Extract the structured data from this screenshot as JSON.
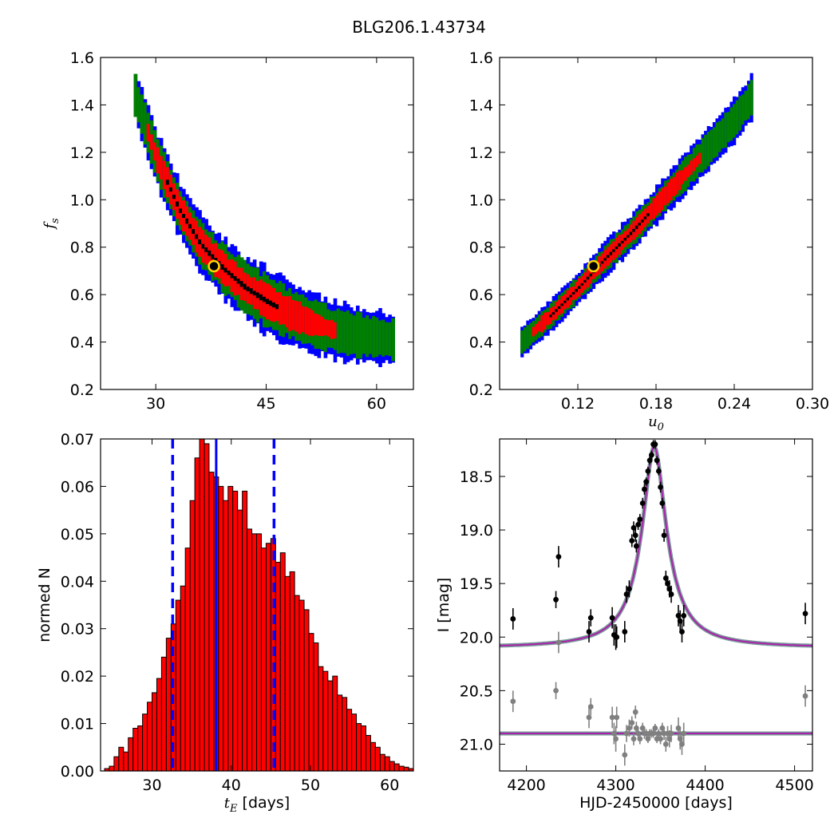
{
  "figure": {
    "title": "BLG206.1.43734"
  },
  "chart_data": [
    {
      "id": "fs-vs-te",
      "type": "heatmap",
      "title": "",
      "xlabel": "",
      "ylabel": "f_s",
      "xlim": [
        22.5,
        65
      ],
      "ylim": [
        0.2,
        1.6
      ],
      "x_ticks": [
        30,
        45,
        60
      ],
      "x_tick_labels": [
        "30",
        "45",
        "60"
      ],
      "y_ticks": [
        0.2,
        0.4,
        0.6,
        0.8,
        1.0,
        1.2,
        1.4,
        1.6
      ],
      "y_tick_labels": [
        "0.2",
        "0.4",
        "0.6",
        "0.8",
        "1.0",
        "1.2",
        "1.4",
        "1.6"
      ],
      "confidence_levels": [
        {
          "level": "outer",
          "color": "#0000ff"
        },
        {
          "level": "middle",
          "color": "#007f00"
        },
        {
          "level": "inner",
          "color": "#ff0000"
        },
        {
          "level": "peak",
          "color": "#000000"
        }
      ],
      "ridge": [
        [
          27,
          1.44
        ],
        [
          30,
          1.17
        ],
        [
          33,
          0.96
        ],
        [
          36,
          0.81
        ],
        [
          39,
          0.71
        ],
        [
          42,
          0.63
        ],
        [
          45,
          0.57
        ],
        [
          48,
          0.52
        ],
        [
          51,
          0.48
        ],
        [
          54,
          0.45
        ],
        [
          57,
          0.43
        ],
        [
          60,
          0.42
        ],
        [
          62,
          0.41
        ]
      ],
      "best_fit": {
        "x": 37.9,
        "y": 0.72,
        "color": "#ffd700"
      }
    },
    {
      "id": "fs-vs-u0",
      "type": "heatmap",
      "title": "",
      "xlabel": "u_0",
      "ylabel": "",
      "xlim": [
        0.06,
        0.3
      ],
      "ylim": [
        0.2,
        1.6
      ],
      "x_ticks": [
        0.12,
        0.18,
        0.24,
        0.3
      ],
      "x_tick_labels": [
        "0.12",
        "0.18",
        "0.24",
        "0.30"
      ],
      "y_ticks": [
        0.2,
        0.4,
        0.6,
        0.8,
        1.0,
        1.2,
        1.4,
        1.6
      ],
      "y_tick_labels": [
        "0.2",
        "0.4",
        "0.6",
        "0.8",
        "1.0",
        "1.2",
        "1.4",
        "1.6"
      ],
      "ridge": [
        [
          0.076,
          0.4
        ],
        [
          0.1,
          0.52
        ],
        [
          0.12,
          0.63
        ],
        [
          0.14,
          0.75
        ],
        [
          0.16,
          0.86
        ],
        [
          0.18,
          0.98
        ],
        [
          0.2,
          1.1
        ],
        [
          0.22,
          1.22
        ],
        [
          0.24,
          1.34
        ],
        [
          0.252,
          1.43
        ]
      ],
      "best_fit": {
        "x": 0.132,
        "y": 0.72,
        "color": "#ffd700"
      }
    },
    {
      "id": "te-histogram",
      "type": "bar",
      "title": "",
      "xlabel": "t_E  [days]",
      "ylabel": "normed N",
      "xlim": [
        23.5,
        63
      ],
      "ylim": [
        0,
        0.07
      ],
      "x_ticks": [
        30,
        40,
        50,
        60
      ],
      "x_tick_labels": [
        "30",
        "40",
        "50",
        "60"
      ],
      "y_ticks": [
        0,
        0.01,
        0.02,
        0.03,
        0.04,
        0.05,
        0.06,
        0.07
      ],
      "y_tick_labels": [
        "0.00",
        "0.01",
        "0.02",
        "0.03",
        "0.04",
        "0.05",
        "0.06",
        "0.07"
      ],
      "bin_width": 0.6,
      "bin_start": 24,
      "values": [
        0.0005,
        0.001,
        0.003,
        0.005,
        0.004,
        0.007,
        0.009,
        0.0095,
        0.012,
        0.0145,
        0.0165,
        0.0195,
        0.024,
        0.028,
        0.031,
        0.036,
        0.039,
        0.047,
        0.057,
        0.066,
        0.07,
        0.069,
        0.063,
        0.062,
        0.06,
        0.057,
        0.06,
        0.059,
        0.055,
        0.059,
        0.051,
        0.05,
        0.05,
        0.047,
        0.048,
        0.049,
        0.044,
        0.046,
        0.041,
        0.042,
        0.037,
        0.036,
        0.034,
        0.029,
        0.027,
        0.022,
        0.021,
        0.019,
        0.02,
        0.016,
        0.0155,
        0.013,
        0.012,
        0.01,
        0.0095,
        0.0075,
        0.006,
        0.005,
        0.0035,
        0.003,
        0.002,
        0.0015,
        0.001,
        0.0008,
        0.0005,
        0.0003
      ],
      "bar_color": "#ff0000",
      "median_line": {
        "x": 38.1,
        "color": "#0000ff",
        "style": "solid"
      },
      "interval_lines": [
        {
          "x": 32.6,
          "color": "#0000ff",
          "style": "dashed"
        },
        {
          "x": 45.4,
          "color": "#0000ff",
          "style": "dashed"
        }
      ]
    },
    {
      "id": "light-curve",
      "type": "scatter",
      "title": "",
      "xlabel": "HJD-2450000 [days]",
      "ylabel": "I [mag]",
      "xlim": [
        4170,
        4520
      ],
      "ylim": [
        21.25,
        18.15
      ],
      "y_inverted": true,
      "x_ticks": [
        4200,
        4300,
        4400,
        4500
      ],
      "x_tick_labels": [
        "4200",
        "4300",
        "4400",
        "4500"
      ],
      "y_ticks": [
        18.5,
        19.0,
        19.5,
        20.0,
        20.5,
        21.0
      ],
      "y_tick_labels": [
        "18.5",
        "19.0",
        "19.5",
        "20.0",
        "20.5",
        "21.0"
      ],
      "model": {
        "t0": 4343,
        "baseline": 20.1,
        "peak": 18.22,
        "color": "#aa22aa"
      },
      "residual_baseline": 20.9,
      "series": [
        {
          "role": "data",
          "color": "#000000",
          "x": [
            4185,
            4233,
            4236,
            4270,
            4272,
            4296,
            4298,
            4300,
            4301,
            4310,
            4312,
            4315,
            4318,
            4320,
            4322,
            4323,
            4325,
            4327,
            4330,
            4332,
            4334,
            4336,
            4338,
            4340,
            4342,
            4344,
            4346,
            4348,
            4350,
            4352,
            4354,
            4356,
            4358,
            4360,
            4362,
            4370,
            4372,
            4374,
            4376,
            4512
          ],
          "y": [
            19.83,
            19.65,
            19.25,
            19.95,
            19.82,
            19.82,
            19.98,
            20.0,
            20.0,
            19.95,
            19.6,
            19.55,
            19.1,
            18.98,
            19.05,
            19.15,
            18.95,
            18.9,
            18.75,
            18.62,
            18.55,
            18.45,
            18.35,
            18.3,
            18.2,
            18.2,
            18.35,
            18.45,
            18.6,
            18.75,
            19.05,
            19.45,
            19.5,
            19.55,
            19.6,
            19.8,
            19.85,
            19.95,
            19.8,
            19.78
          ],
          "err": [
            0.1,
            0.08,
            0.1,
            0.1,
            0.08,
            0.1,
            0.1,
            0.12,
            0.1,
            0.1,
            0.08,
            0.08,
            0.06,
            0.06,
            0.06,
            0.06,
            0.05,
            0.05,
            0.05,
            0.05,
            0.04,
            0.04,
            0.04,
            0.04,
            0.04,
            0.04,
            0.04,
            0.04,
            0.05,
            0.05,
            0.06,
            0.07,
            0.07,
            0.08,
            0.08,
            0.1,
            0.1,
            0.1,
            0.1,
            0.1
          ]
        },
        {
          "role": "residuals",
          "color": "#808080",
          "x": [
            4185,
            4233,
            4236,
            4270,
            4272,
            4296,
            4298,
            4300,
            4301,
            4310,
            4312,
            4315,
            4318,
            4320,
            4322,
            4323,
            4325,
            4327,
            4330,
            4332,
            4334,
            4336,
            4338,
            4340,
            4342,
            4344,
            4346,
            4348,
            4350,
            4352,
            4354,
            4356,
            4358,
            4360,
            4362,
            4370,
            4372,
            4374,
            4376,
            4512
          ],
          "y": [
            20.6,
            20.5,
            20.05,
            20.75,
            20.65,
            20.75,
            20.9,
            20.95,
            20.75,
            21.1,
            20.9,
            20.85,
            20.8,
            20.95,
            20.7,
            20.85,
            20.9,
            20.95,
            20.85,
            20.9,
            20.9,
            20.95,
            20.9,
            20.9,
            20.9,
            20.85,
            20.95,
            20.9,
            20.95,
            20.85,
            20.9,
            21.0,
            20.9,
            20.95,
            20.9,
            20.85,
            20.95,
            21.0,
            20.9,
            20.55
          ],
          "err": [
            0.1,
            0.08,
            0.1,
            0.1,
            0.08,
            0.1,
            0.1,
            0.12,
            0.1,
            0.1,
            0.08,
            0.08,
            0.06,
            0.06,
            0.06,
            0.06,
            0.05,
            0.05,
            0.05,
            0.05,
            0.04,
            0.04,
            0.04,
            0.04,
            0.04,
            0.04,
            0.04,
            0.04,
            0.05,
            0.05,
            0.06,
            0.07,
            0.07,
            0.08,
            0.08,
            0.1,
            0.1,
            0.1,
            0.1,
            0.1
          ]
        }
      ]
    }
  ]
}
